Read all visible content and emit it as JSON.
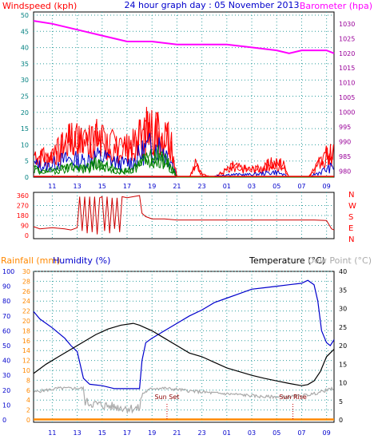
{
  "header": {
    "left_label": "Windspeed (kph)",
    "title": "24 hour graph day : 05 November 2013",
    "right_label": "Barometer (hpa)"
  },
  "colors": {
    "wind_gust": "#ff0000",
    "wind_avg": "#0000cc",
    "wind_low": "#008000",
    "barometer": "#ff00ff",
    "direction": "#cc0000",
    "temperature": "#000000",
    "humidity": "#0000cc",
    "dewpoint": "#aaaaaa",
    "rainfall": "#ff8800",
    "grid": "#2e9e9e",
    "axis_teal": "#008080",
    "axis_red": "#ff0000",
    "axis_purple": "#990099",
    "axis_blue": "#0000cc",
    "axis_orange": "#ff8800"
  },
  "chart_data": [
    {
      "id": "wind_baro",
      "type": "line",
      "x_hours_ticks": [
        "11",
        "13",
        "15",
        "17",
        "19",
        "21",
        "23",
        "01",
        "03",
        "05",
        "07",
        "09"
      ],
      "left_axis": {
        "label": "Windspeed (kph)",
        "ticks": [
          "0",
          "5",
          "10",
          "15",
          "20",
          "25",
          "30",
          "35",
          "40",
          "45",
          "50"
        ],
        "ylim": [
          0,
          50
        ]
      },
      "right_axis": {
        "label": "Barometer (hpa)",
        "ticks": [
          "980",
          "985",
          "990",
          "995",
          "1000",
          "1005",
          "1010",
          "1015",
          "1020",
          "1025",
          "1030"
        ],
        "ylim": [
          978,
          1034
        ]
      },
      "series": [
        {
          "name": "Barometer (hpa)",
          "x": [
            9.5,
            11,
            13,
            15,
            17,
            19,
            21,
            23,
            25,
            27,
            29,
            30,
            31,
            33,
            33.6
          ],
          "values": [
            1031,
            1030,
            1028,
            1026,
            1024,
            1024,
            1023,
            1023,
            1023,
            1022,
            1021,
            1020,
            1021,
            1021,
            1020
          ]
        },
        {
          "name": "Windspeed gust",
          "x": [
            9.5,
            10.5,
            11.5,
            12.5,
            13.5,
            14.5,
            15.5,
            16.5,
            17.5,
            18.5,
            19.5,
            20,
            20.5,
            21,
            22,
            22.5,
            23,
            24,
            25.5,
            26.5,
            27.5,
            28.5,
            29.5,
            30,
            31.5,
            32.5,
            33,
            33.6
          ],
          "values": [
            9,
            7,
            10,
            14,
            13,
            15,
            13,
            10,
            12,
            18,
            18,
            17,
            14,
            0,
            0,
            5,
            1,
            0,
            4,
            3,
            3,
            5,
            5,
            0,
            0,
            6,
            8,
            10
          ]
        },
        {
          "name": "Windspeed avg",
          "x": [
            9.5,
            10.5,
            11.5,
            12.5,
            13.5,
            14.5,
            15.5,
            16.5,
            17.5,
            18.5,
            19.5,
            20,
            20.5,
            21,
            22,
            23,
            25,
            27,
            29,
            30,
            31.5,
            32.5,
            33,
            33.6
          ],
          "values": [
            5,
            4,
            6,
            7,
            6,
            8,
            7,
            5,
            6,
            11,
            12,
            10,
            7,
            0,
            0,
            0,
            1,
            1,
            2,
            0,
            0,
            2,
            3,
            4
          ]
        },
        {
          "name": "Windspeed low",
          "x": [
            9.5,
            10.5,
            11.5,
            12.5,
            13.5,
            14.5,
            15.5,
            16.5,
            17.5,
            18.5,
            19.5,
            20,
            20.5,
            21,
            33.6
          ],
          "values": [
            3,
            2,
            3,
            4,
            3,
            5,
            4,
            2,
            3,
            7,
            8,
            6,
            4,
            0,
            0
          ]
        }
      ]
    },
    {
      "id": "direction",
      "type": "line",
      "left_axis": {
        "ticks": [
          "0",
          "90",
          "180",
          "270",
          "360"
        ],
        "ylim": [
          0,
          360
        ]
      },
      "right_labels": [
        "N",
        "W",
        "S",
        "E",
        "N"
      ],
      "series": [
        {
          "name": "Wind direction",
          "x": [
            9.5,
            10,
            11,
            12,
            12.5,
            13,
            13.2,
            13.4,
            13.6,
            13.8,
            14,
            14.2,
            14.4,
            14.6,
            14.8,
            15,
            15.2,
            15.4,
            15.6,
            15.8,
            16,
            16.2,
            16.4,
            16.6,
            17,
            17.5,
            18,
            18.2,
            18.5,
            19,
            20,
            21,
            22,
            24,
            26,
            28,
            30,
            31,
            32,
            33,
            33.4,
            33.6
          ],
          "values": [
            80,
            60,
            70,
            60,
            50,
            70,
            350,
            40,
            350,
            20,
            350,
            30,
            350,
            10,
            340,
            350,
            40,
            350,
            20,
            340,
            60,
            340,
            30,
            350,
            340,
            350,
            360,
            200,
            170,
            150,
            150,
            140,
            140,
            140,
            140,
            140,
            140,
            140,
            140,
            135,
            60,
            50
          ]
        }
      ]
    },
    {
      "id": "temp_hum",
      "type": "line",
      "labels": {
        "rainfall": "Rainfall (mm)",
        "humidity": "Humidity (%)",
        "temperature": "Temperature (°C)",
        "dewpoint": "Dew Point (°C)"
      },
      "humidity_axis": {
        "ticks": [
          "0",
          "10",
          "20",
          "30",
          "40",
          "50",
          "60",
          "70",
          "80",
          "90",
          "100"
        ],
        "ylim": [
          0,
          100
        ]
      },
      "rainfall_axis": {
        "ticks": [
          "0",
          "2",
          "4",
          "6",
          "8",
          "10",
          "12",
          "14",
          "16",
          "18",
          "20",
          "22",
          "24",
          "26",
          "28",
          "30"
        ],
        "ylim": [
          0,
          30
        ]
      },
      "temp_axis": {
        "ticks": [
          "0",
          "5",
          "10",
          "15",
          "20",
          "25",
          "30",
          "35",
          "40"
        ],
        "ylim": [
          0,
          40
        ]
      },
      "annotations": [
        {
          "label": "Sun Set",
          "x": 20.2
        },
        {
          "label": "Sun Rise",
          "x": 30.3
        }
      ],
      "series": [
        {
          "name": "Temperature (°C)",
          "x": [
            9.5,
            10.5,
            11.5,
            12.5,
            13.5,
            14.5,
            15.5,
            16.5,
            17.5,
            18,
            19,
            20,
            21,
            22,
            23,
            24,
            25,
            26,
            27,
            28,
            29,
            30,
            31,
            31.5,
            32,
            32.5,
            33,
            33.6
          ],
          "values": [
            12.5,
            15,
            17,
            19,
            21,
            23,
            24.5,
            25.5,
            26,
            25.5,
            24,
            22,
            20,
            18,
            17,
            15.5,
            14,
            13,
            12,
            11.2,
            10.5,
            9.8,
            9.2,
            9.5,
            10.5,
            13,
            17,
            19
          ]
        },
        {
          "name": "Humidity (%)",
          "x": [
            9.5,
            10,
            11,
            12,
            12.5,
            13,
            13.5,
            14,
            15,
            16,
            17,
            17.5,
            18,
            18.2,
            18.5,
            19,
            20,
            21,
            22,
            23,
            24,
            25,
            26,
            27,
            28,
            29,
            30,
            31,
            31.5,
            32,
            32.3,
            32.6,
            33,
            33.3,
            33.6
          ],
          "values": [
            73,
            68,
            62,
            55,
            50,
            46,
            28,
            24,
            23,
            21,
            21,
            21,
            21,
            40,
            52,
            55,
            60,
            65,
            70,
            74,
            79,
            82,
            85,
            88,
            89,
            90,
            91,
            92,
            94,
            91,
            80,
            60,
            52,
            50,
            54
          ]
        },
        {
          "name": "Dew Point (°C)",
          "x": [
            9.5,
            10.5,
            11.5,
            12.5,
            13.5,
            13.6,
            14,
            15,
            16,
            17,
            18,
            18.2,
            19,
            20,
            21,
            22,
            23,
            24,
            25,
            26,
            27,
            28,
            29,
            30,
            31,
            32,
            33,
            33.6
          ],
          "values": [
            7.5,
            8,
            8.5,
            8.5,
            8.5,
            5,
            4.5,
            4,
            3.5,
            3.2,
            3,
            7,
            8.5,
            8.5,
            8.2,
            7.8,
            7.5,
            7.2,
            7,
            6.8,
            6.5,
            6.2,
            6.2,
            6.2,
            6.5,
            7,
            8,
            8.5
          ]
        },
        {
          "name": "Rainfall (mm)",
          "x": [
            9.5,
            33.6
          ],
          "values": [
            0,
            0
          ]
        }
      ]
    }
  ]
}
